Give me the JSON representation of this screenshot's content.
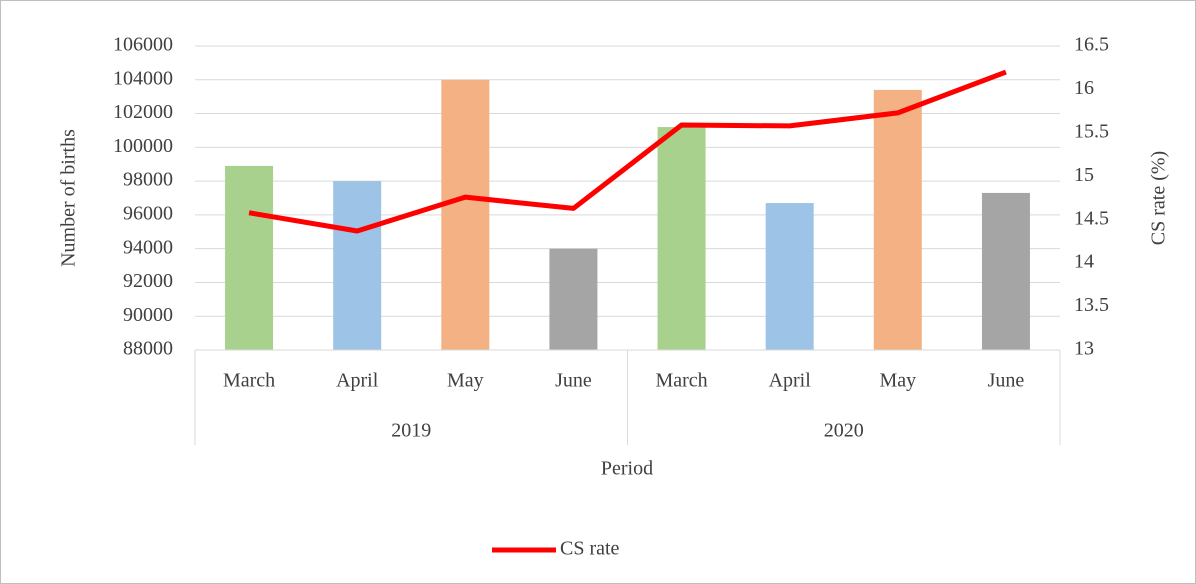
{
  "chart_data": {
    "type": "combo",
    "x_label": "Period",
    "y_label": "Number of births",
    "y2_label": "CS rate (%)",
    "groups": [
      {
        "name": "2019",
        "categories": [
          "March",
          "April",
          "May",
          "June"
        ]
      },
      {
        "name": "2020",
        "categories": [
          "March",
          "April",
          "May",
          "June"
        ]
      }
    ],
    "bars": {
      "values": [
        98900,
        98000,
        104000,
        94000,
        101200,
        96700,
        103400,
        97300
      ],
      "colors": [
        "#a9d18e",
        "#9dc3e6",
        "#f4b183",
        "#a5a5a5",
        "#a9d18e",
        "#9dc3e6",
        "#f4b183",
        "#a5a5a5"
      ]
    },
    "series": [
      {
        "name": "CS rate",
        "color": "#ff0000",
        "axis": "y2",
        "values": [
          14.58,
          14.37,
          14.76,
          14.63,
          15.59,
          15.58,
          15.73,
          16.2
        ]
      }
    ],
    "ylim": [
      88000,
      106000
    ],
    "yticks": [
      88000,
      90000,
      92000,
      94000,
      96000,
      98000,
      100000,
      102000,
      104000,
      106000
    ],
    "y2lim": [
      13,
      16.5
    ],
    "y2ticks": [
      13,
      13.5,
      14,
      14.5,
      15,
      15.5,
      16,
      16.5
    ],
    "grid": true,
    "legend": "bottom"
  }
}
